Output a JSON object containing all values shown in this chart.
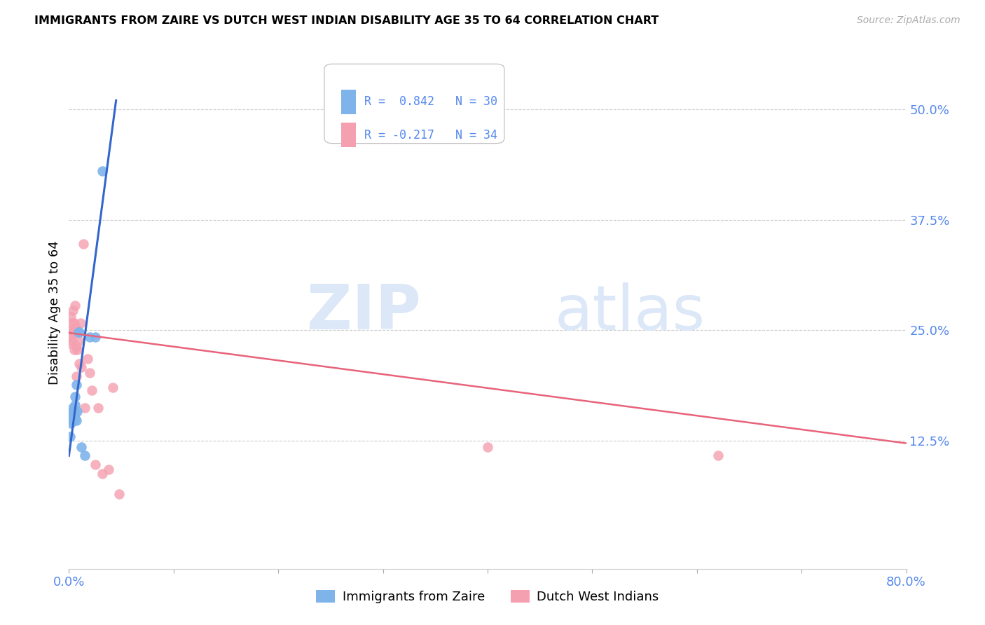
{
  "title": "IMMIGRANTS FROM ZAIRE VS DUTCH WEST INDIAN DISABILITY AGE 35 TO 64 CORRELATION CHART",
  "source": "Source: ZipAtlas.com",
  "ylabel": "Disability Age 35 to 64",
  "xlim": [
    0.0,
    0.8
  ],
  "ylim": [
    -0.02,
    0.56
  ],
  "yticks": [
    0.125,
    0.25,
    0.375,
    0.5
  ],
  "ytick_labels": [
    "12.5%",
    "25.0%",
    "37.5%",
    "50.0%"
  ],
  "xticks": [
    0.0,
    0.1,
    0.2,
    0.3,
    0.4,
    0.5,
    0.6,
    0.7,
    0.8
  ],
  "legend_r_blue": "R =  0.842",
  "legend_n_blue": "N = 30",
  "legend_r_pink": "R = -0.217",
  "legend_n_pink": "N = 34",
  "label_blue": "Immigrants from Zaire",
  "label_pink": "Dutch West Indians",
  "blue_color": "#7eb4ea",
  "pink_color": "#f4a0b0",
  "blue_line_color": "#3366cc",
  "pink_line_color": "#e8637a",
  "axis_color": "#5588ee",
  "watermark_zip": "ZIP",
  "watermark_atlas": "atlas",
  "blue_x": [
    0.001,
    0.002,
    0.002,
    0.003,
    0.003,
    0.003,
    0.003,
    0.004,
    0.004,
    0.004,
    0.004,
    0.004,
    0.005,
    0.005,
    0.005,
    0.005,
    0.006,
    0.006,
    0.006,
    0.006,
    0.007,
    0.007,
    0.008,
    0.009,
    0.01,
    0.012,
    0.015,
    0.02,
    0.025,
    0.032
  ],
  "blue_y": [
    0.13,
    0.145,
    0.15,
    0.148,
    0.152,
    0.155,
    0.158,
    0.148,
    0.152,
    0.155,
    0.158,
    0.162,
    0.148,
    0.152,
    0.155,
    0.158,
    0.15,
    0.155,
    0.165,
    0.175,
    0.148,
    0.188,
    0.158,
    0.248,
    0.248,
    0.118,
    0.108,
    0.242,
    0.242,
    0.43
  ],
  "pink_x": [
    0.001,
    0.001,
    0.002,
    0.002,
    0.003,
    0.003,
    0.004,
    0.004,
    0.005,
    0.005,
    0.005,
    0.006,
    0.006,
    0.007,
    0.007,
    0.008,
    0.008,
    0.009,
    0.01,
    0.011,
    0.012,
    0.014,
    0.015,
    0.018,
    0.02,
    0.022,
    0.025,
    0.028,
    0.032,
    0.038,
    0.042,
    0.048,
    0.4,
    0.62
  ],
  "pink_y": [
    0.235,
    0.245,
    0.25,
    0.265,
    0.238,
    0.258,
    0.248,
    0.272,
    0.228,
    0.248,
    0.258,
    0.252,
    0.278,
    0.232,
    0.198,
    0.228,
    0.252,
    0.238,
    0.212,
    0.258,
    0.208,
    0.348,
    0.162,
    0.218,
    0.202,
    0.182,
    0.098,
    0.162,
    0.088,
    0.092,
    0.185,
    0.065,
    0.118,
    0.108
  ],
  "blue_trend_x": [
    0.0,
    0.045
  ],
  "blue_trend_y": [
    0.108,
    0.51
  ],
  "pink_trend_x": [
    0.0,
    0.8
  ],
  "pink_trend_y": [
    0.247,
    0.122
  ]
}
